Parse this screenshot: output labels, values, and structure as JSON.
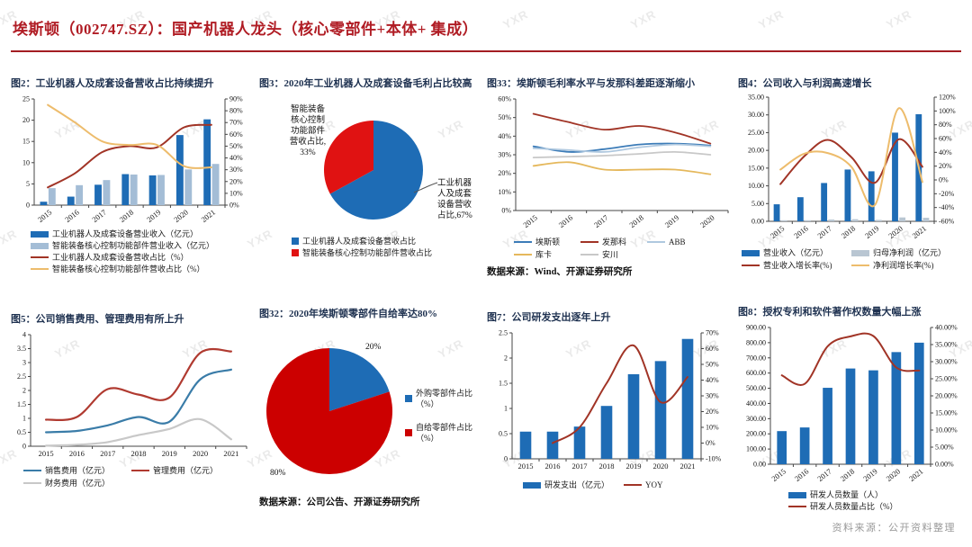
{
  "header": {
    "title": "埃斯顿（002747.SZ）：国产机器人龙头（核心零部件+本体+ 集成）"
  },
  "watermark": {
    "text": "YXR"
  },
  "footer": {
    "source": "资料来源：公开资料整理"
  },
  "chart_data": [
    {
      "id": "fig2",
      "label": "图2：",
      "title": "工业机器人及成套设备营收占比持续提升",
      "type": "combo",
      "categories": [
        "2015",
        "2016",
        "2017",
        "2018",
        "2019",
        "2020",
        "2021"
      ],
      "axes": {
        "left": {
          "min": 0,
          "max": 25,
          "step": 5,
          "fmt": "int"
        },
        "right": {
          "min": 0,
          "max": 90,
          "step": 10,
          "fmt": "pct0"
        }
      },
      "bar_series": [
        {
          "name": "工业机器人及成套设备营业收入（亿元）",
          "color": "#1E6CB5",
          "values": [
            0.8,
            2.0,
            4.8,
            7.3,
            7.0,
            16.5,
            20.2
          ]
        },
        {
          "name": "智能装备核心控制功能部件营业收入（亿元）",
          "color": "#A4BDD6",
          "values": [
            4.0,
            4.7,
            5.9,
            7.2,
            7.1,
            8.4,
            9.7
          ]
        }
      ],
      "line_series": [
        {
          "name": "工业机器人及成套设备营收占比（%）",
          "color": "#A13426",
          "axis": "right",
          "values": [
            15,
            27,
            45,
            50,
            49,
            66,
            68
          ]
        },
        {
          "name": "智能装备核心控制功能部件营收占比（%）",
          "color": "#EDBC6C",
          "axis": "right",
          "values": [
            85,
            70,
            54,
            51,
            51,
            33,
            32
          ]
        }
      ],
      "legend": {
        "position": "bottom",
        "columns": 1
      }
    },
    {
      "id": "fig3",
      "label": "图3：",
      "title": "2020年工业机器人及成套设备毛利占比较高",
      "type": "pie",
      "slices": [
        {
          "name": "工业机器人及成套设备营收占比",
          "color": "#1E6CB5",
          "value": 67
        },
        {
          "name": "智能装备核心控制功能部件营收占比",
          "color": "#E01212",
          "value": 33
        }
      ],
      "callouts": [
        {
          "text": "智能装备\n核心控制\n功能部件\n营收占比,\n33%"
        },
        {
          "text": "工业机器\n人及成套\n设备营收\n占比,67%"
        }
      ],
      "legend": {
        "position": "bottom",
        "columns": 1
      }
    },
    {
      "id": "fig33",
      "label": "图33：",
      "title": "埃斯顿毛利率水平与发那科差距逐渐缩小",
      "type": "line",
      "categories": [
        "2015",
        "2016",
        "2017",
        "2018",
        "2019",
        "2020"
      ],
      "axes": {
        "left": {
          "min": 0,
          "max": 60,
          "step": 10,
          "fmt": "pct0"
        }
      },
      "line_series": [
        {
          "name": "埃斯顿",
          "color": "#3C7CB8",
          "values": [
            34.5,
            31.5,
            33,
            35.5,
            36,
            35
          ]
        },
        {
          "name": "发那科",
          "color": "#A13426",
          "values": [
            52,
            47.5,
            43.5,
            45.5,
            42,
            36
          ]
        },
        {
          "name": "ABB",
          "color": "#AFC8DF",
          "values": [
            33.5,
            32.5,
            31.5,
            34,
            35.5,
            34.5
          ]
        },
        {
          "name": "库卡",
          "color": "#E5B85C",
          "values": [
            24,
            26,
            22,
            22,
            22,
            19.5
          ]
        },
        {
          "name": "安川",
          "color": "#C8C8C8",
          "values": [
            28.5,
            29,
            29.5,
            30.5,
            31.5,
            30
          ]
        }
      ],
      "legend": {
        "position": "bottom",
        "columns": 3
      },
      "source_note": "数据来源：Wind、开源证券研究所"
    },
    {
      "id": "fig4",
      "label": "图4：",
      "title": "公司收入与利润高速增长",
      "type": "combo",
      "categories": [
        "2015",
        "2016",
        "2017",
        "2018",
        "2019",
        "2020",
        "2021"
      ],
      "axes": {
        "left": {
          "min": 0,
          "max": 35,
          "step": 5,
          "fmt": "2dp"
        },
        "right": {
          "min": -60,
          "max": 120,
          "step": 20,
          "fmt": "pct0"
        }
      },
      "bar_series": [
        {
          "name": "营业收入（亿元）",
          "color": "#1E6CB5",
          "values": [
            4.8,
            6.8,
            10.8,
            14.6,
            14.1,
            25.0,
            30.2
          ]
        },
        {
          "name": "归母净利润（亿元）",
          "color": "#B9C6D2",
          "values": [
            0.3,
            0.3,
            0.5,
            0.6,
            0.4,
            1.1,
            1.0
          ]
        }
      ],
      "line_series": [
        {
          "name": "营业收入增长率(%)",
          "color": "#A13426",
          "axis": "right",
          "values": [
            -6,
            34,
            58,
            33,
            -4,
            59,
            19
          ]
        },
        {
          "name": "净利润增长率(%)",
          "color": "#EDBC6C",
          "axis": "right",
          "values": [
            15,
            38,
            39,
            19,
            -36,
            104,
            -3
          ]
        }
      ],
      "legend": {
        "position": "bottom",
        "columns": 2
      }
    },
    {
      "id": "fig5",
      "label": "图5：",
      "title": "公司销售费用、管理费用有所上升",
      "type": "line",
      "categories": [
        "2015",
        "2016",
        "2017",
        "2018",
        "2019",
        "2020",
        "2021"
      ],
      "axes": {
        "left": {
          "min": 0,
          "max": 4,
          "step": 0.5,
          "fmt": "auto1"
        }
      },
      "line_series": [
        {
          "name": "销售费用（亿元）",
          "color": "#3A7CA8",
          "values": [
            0.5,
            0.55,
            0.75,
            1.05,
            0.88,
            2.4,
            2.75
          ]
        },
        {
          "name": "管理费用（亿元）",
          "color": "#B03A30",
          "values": [
            0.95,
            1.05,
            2.05,
            1.85,
            1.75,
            3.35,
            3.4
          ]
        },
        {
          "name": "财务费用（亿元）",
          "color": "#C8C8C8",
          "values": [
            0.02,
            0.05,
            0.15,
            0.4,
            0.62,
            0.97,
            0.25
          ]
        }
      ],
      "legend": {
        "position": "bottom",
        "columns": 2
      }
    },
    {
      "id": "fig32",
      "label": "图32：",
      "title": "2020年埃斯顿零部件自给率达80%",
      "type": "pie",
      "slices": [
        {
          "name": "外购零部件占比（%）",
          "color": "#1E6CB5",
          "value": 20
        },
        {
          "name": "自给零部件占比（%）",
          "color": "#CC0000",
          "value": 80
        }
      ],
      "callouts": [
        {
          "text": "20%"
        },
        {
          "text": "80%"
        }
      ],
      "legend": {
        "position": "right",
        "columns": 1
      },
      "source_note": "数据来源：公司公告、开源证券研究所"
    },
    {
      "id": "fig7",
      "label": "图7：",
      "title": "公司研发支出逐年上升",
      "type": "combo",
      "categories": [
        "2015",
        "2016",
        "2017",
        "2018",
        "2019",
        "2020",
        "2021"
      ],
      "axes": {
        "left": {
          "min": 0,
          "max": 2.5,
          "step": 0.5,
          "fmt": "auto1"
        },
        "right": {
          "min": -10,
          "max": 70,
          "step": 10,
          "fmt": "pct0"
        }
      },
      "bar_series": [
        {
          "name": "研发支出（亿元）",
          "color": "#1E6CB5",
          "values": [
            0.54,
            0.54,
            0.64,
            1.05,
            1.68,
            1.94,
            2.38
          ]
        }
      ],
      "line_series": [
        {
          "name": "YOY",
          "color": "#A13426",
          "axis": "right",
          "values": [
            null,
            0,
            10,
            38,
            62,
            26,
            42
          ]
        }
      ],
      "legend": {
        "position": "bottom",
        "columns": 2
      }
    },
    {
      "id": "fig8",
      "label": "图8：",
      "title": "授权专利和软件著作权数量大幅上涨",
      "type": "combo",
      "categories": [
        "2015",
        "2016",
        "2017",
        "2018",
        "2019",
        "2020",
        "2021"
      ],
      "axes": {
        "left": {
          "min": 0,
          "max": 900,
          "step": 100,
          "fmt": "2dp"
        },
        "right": {
          "min": 0,
          "max": 40,
          "step": 5,
          "fmt": "pct2"
        }
      },
      "bar_series": [
        {
          "name": "研发人员数量（人）",
          "color": "#1E6CB5",
          "values": [
            218,
            242,
            503,
            630,
            618,
            738,
            800
          ]
        }
      ],
      "line_series": [
        {
          "name": "研发人员数量占比（%）",
          "color": "#A13426",
          "axis": "right",
          "values": [
            26,
            23.5,
            34.5,
            37.4,
            37.5,
            28.3,
            27.4
          ]
        }
      ],
      "legend": {
        "position": "bottom",
        "columns": 1
      }
    }
  ]
}
